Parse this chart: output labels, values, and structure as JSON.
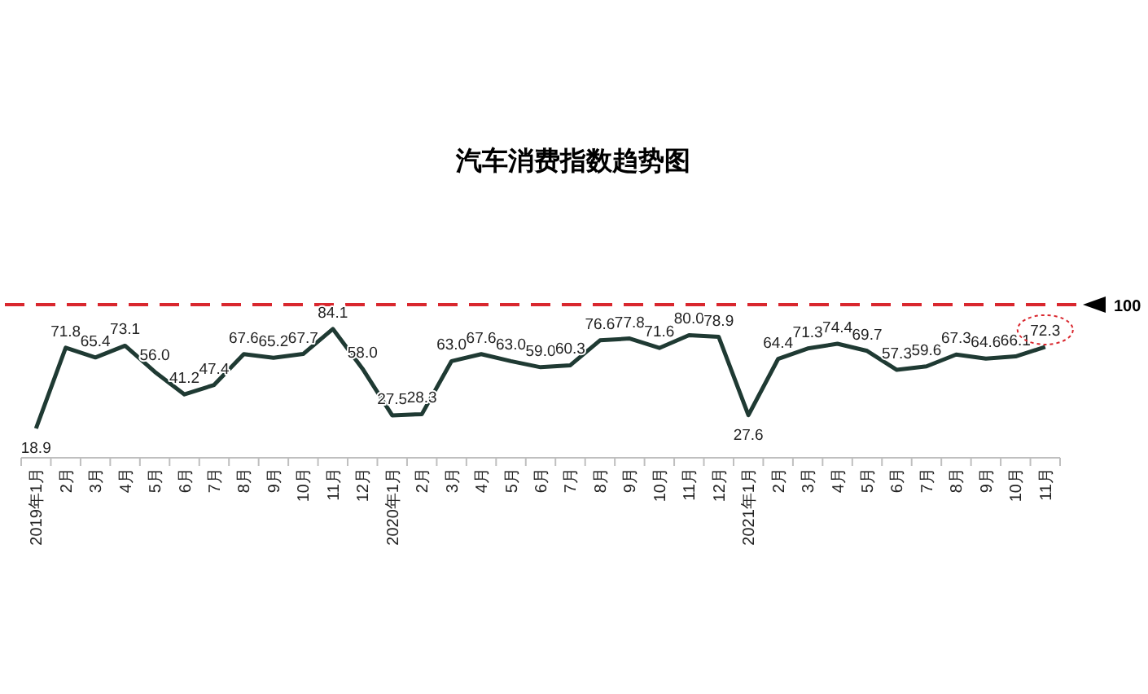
{
  "chart_data": {
    "type": "line",
    "title": "汽车消费指数趋势图",
    "categories": [
      "2019年1月",
      "2月",
      "3月",
      "4月",
      "5月",
      "6月",
      "7月",
      "8月",
      "9月",
      "10月",
      "11月",
      "12月",
      "2020年1月",
      "2月",
      "3月",
      "4月",
      "5月",
      "6月",
      "7月",
      "8月",
      "9月",
      "10月",
      "11月",
      "12月",
      "2021年1月",
      "2月",
      "3月",
      "4月",
      "5月",
      "6月",
      "7月",
      "8月",
      "9月",
      "10月",
      "11月"
    ],
    "series": [
      {
        "color": "#1f3a33",
        "values": [
          18.9,
          71.8,
          65.4,
          73.1,
          56.0,
          41.2,
          47.4,
          67.6,
          65.2,
          67.7,
          84.1,
          58.0,
          27.5,
          28.3,
          63.0,
          67.6,
          63.0,
          59.0,
          60.3,
          76.6,
          77.8,
          71.6,
          80.0,
          78.9,
          27.6,
          64.4,
          71.3,
          74.4,
          69.7,
          57.3,
          59.6,
          67.3,
          64.6,
          66.1,
          72.3
        ],
        "value_labels": [
          "18.9",
          "71.8",
          "65.4",
          "73.1",
          "56.0",
          "41.2",
          "47.4",
          "67.6",
          "65.2",
          "67.7",
          "84.1",
          "58.0",
          "27.5",
          "28.3",
          "63.0",
          "67.6",
          "63.0",
          "59.0",
          "60.3",
          "76.6",
          "77.8",
          "71.6",
          "80.0",
          "78.9",
          "27.6",
          "64.4",
          "71.3",
          "74.4",
          "69.7",
          "57.3",
          "59.6",
          "67.3",
          "64.6",
          "66.1",
          "72.3"
        ]
      }
    ],
    "ref_lines": [
      {
        "axis": "y",
        "value": 100,
        "label": "100",
        "color": "#d9272e",
        "line_style": "dashed"
      }
    ],
    "marker": "none",
    "line_style": "solid"
  }
}
